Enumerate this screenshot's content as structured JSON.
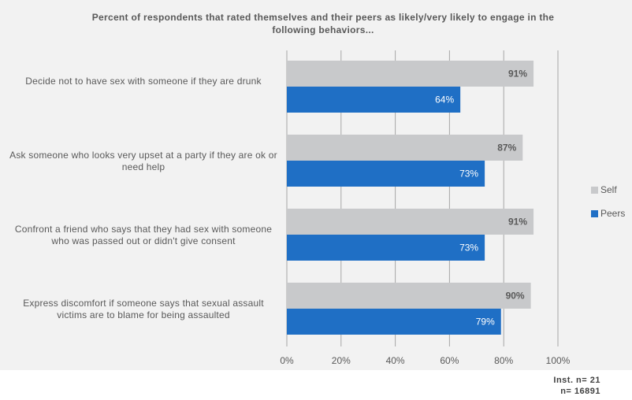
{
  "chart_data": {
    "type": "bar",
    "orientation": "horizontal",
    "title": "Percent of respondents that rated themselves and their peers as likely/very likely to engage in the following behaviors...",
    "categories": [
      "Decide not to have sex with someone if they are drunk",
      "Ask someone who looks very upset at a party if they are ok or need help",
      "Confront a friend who says that they had sex with someone who was passed out or didn't give consent",
      "Express discomfort if someone says that sexual assault victims are to blame for being assaulted"
    ],
    "series": [
      {
        "name": "Self",
        "values": [
          91,
          87,
          91,
          90
        ],
        "labels": [
          "91%",
          "87%",
          "91%",
          "90%"
        ],
        "color": "#c8c9cb"
      },
      {
        "name": "Peers",
        "values": [
          64,
          73,
          73,
          79
        ],
        "labels": [
          "64%",
          "73%",
          "73%",
          "79%"
        ],
        "color": "#1f6fc5"
      }
    ],
    "xlim": [
      0,
      100
    ],
    "xticks": [
      "0%",
      "20%",
      "40%",
      "60%",
      "80%",
      "100%"
    ],
    "grid": true,
    "legend_position": "right"
  },
  "footnote": {
    "inst_n": "Inst. n=  21",
    "n": "n=  16891"
  }
}
